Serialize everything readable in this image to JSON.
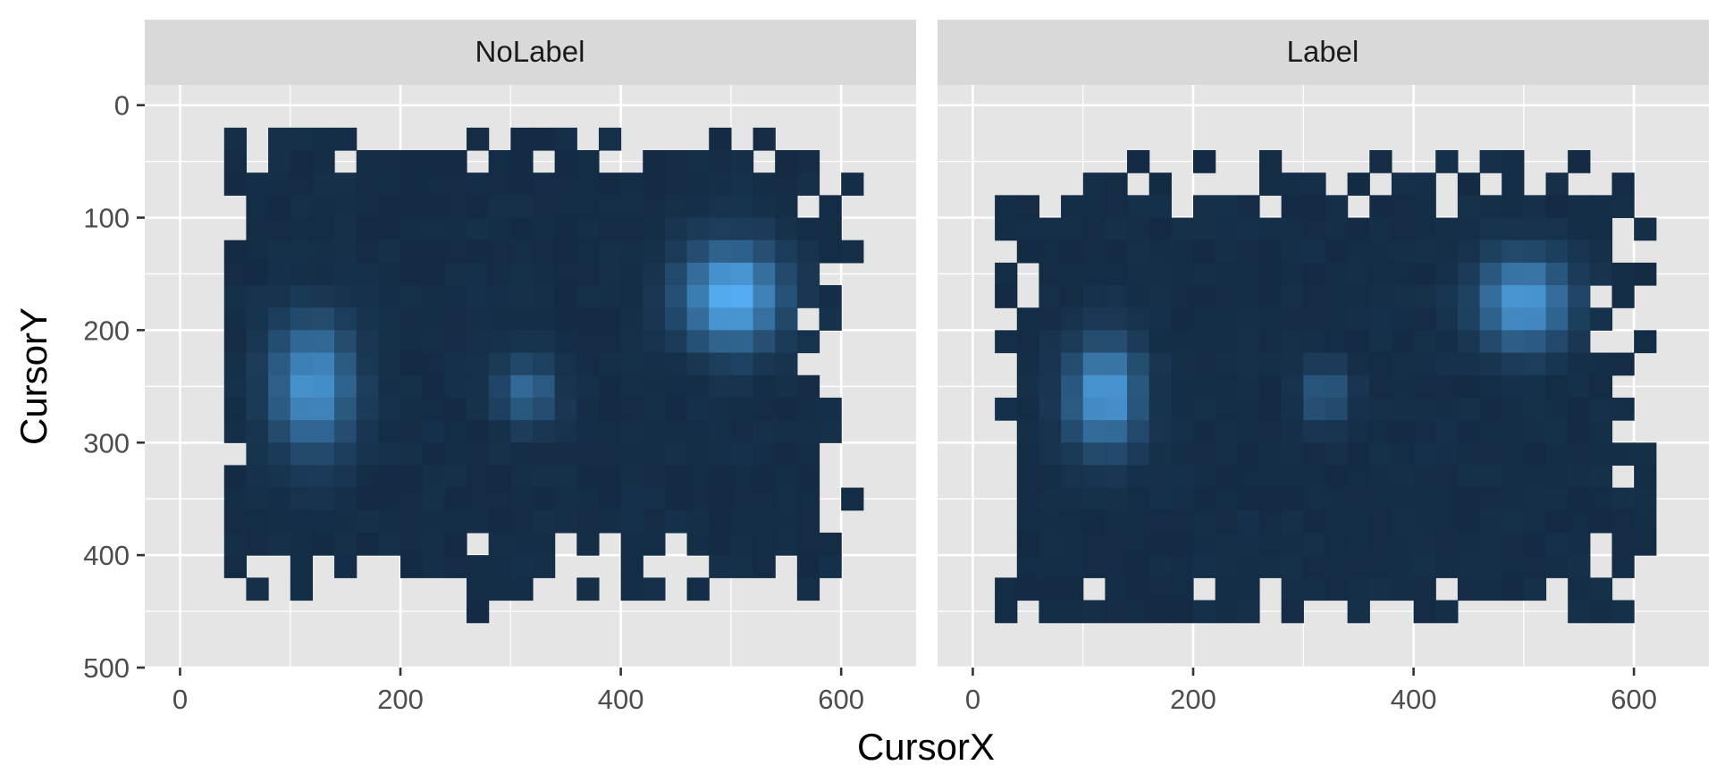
{
  "chart_data": {
    "type": "heatmap",
    "title": "",
    "xlabel": "CursorX",
    "ylabel": "CursorY",
    "xlim": [
      -32,
      668
    ],
    "ylim": [
      500,
      -18
    ],
    "y_reversed": true,
    "x_ticks": [
      0,
      200,
      400,
      600
    ],
    "y_ticks": [
      0,
      100,
      200,
      300,
      400,
      500
    ],
    "bin_size": 20,
    "x_origin": 0,
    "y_origin": 20,
    "colors": {
      "low": "#132B43",
      "high": "#56B1F7",
      "panel_bg": "#E5E5E5",
      "strip_bg": "#D9D9D9",
      "grid": "#FFFFFF",
      "text": "#4D4D4D",
      "axis_title": "#000000"
    },
    "panels": [
      {
        "label": "NoLabel",
        "rows": [
          "..############.......................",
          ".#############.##.#####.......#......",
          ".#######...#.#..#...##.##..##.###....",
          ".####.##....#.###.#...##.####.#.....",
          ".####.######.#.#....#.####.#.###.##.....",
          ".###########.####.############.###.#.....",
          "...................................."
        ],
        "blobs": [
          {
            "x": 500,
            "y": 170,
            "peak": 1.0,
            "sx": 30,
            "sy": 30
          },
          {
            "x": 120,
            "y": 250,
            "peak": 0.78,
            "sx": 25,
            "sy": 38
          },
          {
            "x": 315,
            "y": 255,
            "peak": 0.45,
            "sx": 18,
            "sy": 20
          }
        ]
      },
      {
        "label": "Label",
        "rows": [],
        "blobs": [
          {
            "x": 500,
            "y": 175,
            "peak": 0.82,
            "sx": 28,
            "sy": 28
          },
          {
            "x": 120,
            "y": 258,
            "peak": 0.85,
            "sx": 22,
            "sy": 32
          },
          {
            "x": 320,
            "y": 258,
            "peak": 0.38,
            "sx": 14,
            "sy": 18
          }
        ]
      }
    ],
    "occupancy": {
      "NoLabel": [
        "",
        "..############.......#..#.##..##....",
        ".#############.##.#####.#..#.#######",
        ".###########################.####.####...",
        "............................................."
      ]
    }
  }
}
